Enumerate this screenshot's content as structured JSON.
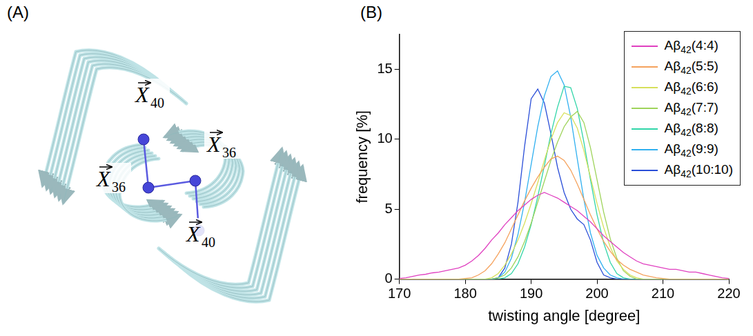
{
  "panel_a": {
    "panel_label": "(A)",
    "labels": [
      {
        "symbol": "X",
        "subscript": "40"
      },
      {
        "symbol": "X",
        "subscript": "36"
      },
      {
        "symbol": "X",
        "subscript": "36"
      },
      {
        "symbol": "X",
        "subscript": "40"
      }
    ]
  },
  "chart_data": {
    "panel_label": "(B)",
    "type": "line",
    "x_label": "twisting angle [degree]",
    "y_label": "frequency [%]",
    "x": [
      170,
      171,
      172,
      173,
      174,
      175,
      176,
      177,
      178,
      179,
      180,
      181,
      182,
      183,
      184,
      185,
      186,
      187,
      188,
      189,
      190,
      191,
      192,
      193,
      194,
      195,
      196,
      197,
      198,
      199,
      200,
      201,
      202,
      203,
      204,
      205,
      206,
      207,
      208,
      209,
      210,
      211,
      212,
      213,
      214,
      215,
      216,
      217,
      218,
      219,
      220
    ],
    "xlim": [
      170,
      220
    ],
    "xticks": [
      170,
      180,
      190,
      200,
      210,
      220
    ],
    "ylim": [
      0,
      17.5
    ],
    "yticks": [
      0,
      5,
      10,
      15
    ],
    "grid": false,
    "legend": "top-right",
    "series": [
      {
        "name": "Aβ42(4:4)",
        "color": "#e040c0",
        "values": [
          0.05,
          0.1,
          0.2,
          0.3,
          0.35,
          0.45,
          0.5,
          0.6,
          0.7,
          0.8,
          1.0,
          1.3,
          1.7,
          2.2,
          2.8,
          3.3,
          3.9,
          4.4,
          4.9,
          5.3,
          5.7,
          6.0,
          6.2,
          6.0,
          5.8,
          5.5,
          5.2,
          4.9,
          4.5,
          4.1,
          3.6,
          3.1,
          2.7,
          2.3,
          1.9,
          1.6,
          1.3,
          1.1,
          1.0,
          0.9,
          0.8,
          0.7,
          0.7,
          0.6,
          0.5,
          0.5,
          0.4,
          0.3,
          0.2,
          0.1,
          0.05
        ]
      },
      {
        "name": "Aβ42(5:5)",
        "color": "#f5a25d",
        "values": [
          0,
          0,
          0,
          0,
          0,
          0,
          0,
          0,
          0,
          0,
          0.05,
          0.1,
          0.3,
          0.6,
          1.1,
          1.8,
          2.6,
          3.6,
          4.6,
          5.6,
          6.5,
          7.3,
          8.0,
          8.6,
          8.8,
          8.5,
          7.8,
          6.8,
          5.7,
          4.6,
          3.6,
          2.7,
          2.0,
          1.4,
          1.0,
          0.7,
          0.5,
          0.3,
          0.2,
          0.1,
          0.05,
          0,
          0,
          0,
          0,
          0,
          0,
          0,
          0,
          0,
          0
        ]
      },
      {
        "name": "Aβ42(6:6)",
        "color": "#d6e05a",
        "values": [
          0,
          0,
          0,
          0,
          0,
          0,
          0,
          0,
          0,
          0,
          0,
          0,
          0,
          0,
          0.1,
          0.4,
          1.0,
          1.8,
          2.8,
          4.0,
          5.4,
          6.9,
          8.5,
          10.0,
          11.2,
          11.9,
          11.7,
          10.8,
          9.2,
          7.3,
          5.4,
          3.7,
          2.3,
          1.3,
          0.7,
          0.3,
          0.1,
          0,
          0,
          0,
          0,
          0,
          0,
          0,
          0,
          0,
          0,
          0,
          0,
          0,
          0
        ]
      },
      {
        "name": "Aβ42(7:7)",
        "color": "#9ed35a",
        "values": [
          0,
          0,
          0,
          0,
          0,
          0,
          0,
          0,
          0,
          0,
          0,
          0,
          0,
          0,
          0,
          0.1,
          0.3,
          0.8,
          1.6,
          2.7,
          4.0,
          5.5,
          7.0,
          8.5,
          9.8,
          10.9,
          11.6,
          12.0,
          11.2,
          9.4,
          7.1,
          4.8,
          2.9,
          1.5,
          0.6,
          0.2,
          0,
          0,
          0,
          0,
          0,
          0,
          0,
          0,
          0,
          0,
          0,
          0,
          0,
          0,
          0
        ]
      },
      {
        "name": "Aβ42(8:8)",
        "color": "#30d5a8",
        "values": [
          0,
          0,
          0,
          0,
          0,
          0,
          0,
          0,
          0,
          0,
          0,
          0,
          0,
          0,
          0,
          0,
          0.1,
          0.4,
          1.1,
          2.3,
          3.9,
          5.9,
          8.1,
          10.4,
          12.3,
          13.8,
          13.7,
          12.2,
          9.8,
          7.1,
          4.6,
          2.6,
          1.2,
          0.4,
          0.1,
          0,
          0,
          0,
          0,
          0,
          0,
          0,
          0,
          0,
          0,
          0,
          0,
          0,
          0,
          0,
          0
        ]
      },
      {
        "name": "Aβ42(9:9)",
        "color": "#30b0f0",
        "values": [
          0,
          0,
          0,
          0,
          0,
          0,
          0,
          0,
          0,
          0,
          0,
          0,
          0,
          0,
          0,
          0.1,
          0.5,
          1.5,
          3.2,
          5.5,
          8.2,
          10.9,
          13.1,
          14.5,
          14.9,
          13.9,
          11.6,
          8.6,
          5.7,
          3.3,
          1.7,
          0.8,
          0.3,
          0.1,
          0,
          0,
          0,
          0,
          0,
          0,
          0,
          0,
          0,
          0,
          0,
          0,
          0,
          0,
          0,
          0,
          0
        ]
      },
      {
        "name": "Aβ42(10:10)",
        "color": "#2a4ed8",
        "values": [
          0,
          0,
          0,
          0,
          0,
          0,
          0,
          0,
          0,
          0,
          0,
          0,
          0,
          0,
          0,
          0.1,
          0.8,
          2.5,
          5.5,
          9.5,
          12.9,
          13.6,
          12.6,
          10.4,
          8.0,
          6.2,
          5.0,
          4.3,
          3.9,
          2.8,
          1.2,
          0.3,
          0.1,
          0,
          0,
          0,
          0,
          0,
          0,
          0,
          0,
          0,
          0,
          0,
          0,
          0,
          0,
          0,
          0,
          0,
          0
        ]
      }
    ]
  }
}
